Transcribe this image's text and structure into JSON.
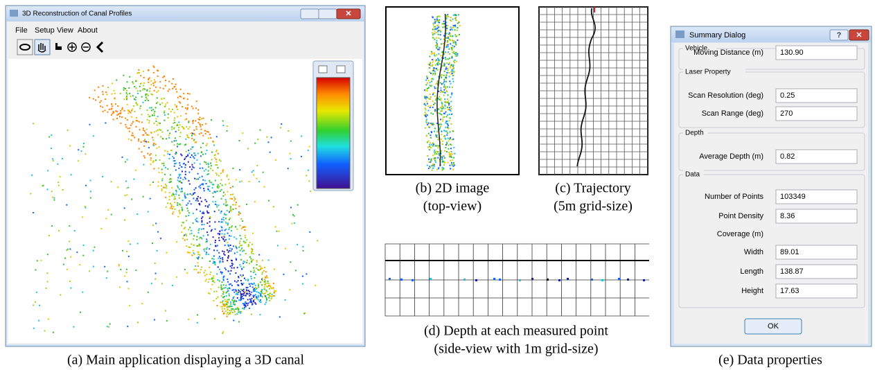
{
  "main_window": {
    "title": "3D Reconstruction of Canal Profiles",
    "menu": [
      "File",
      "Setup",
      "View",
      "About"
    ]
  },
  "captions": {
    "a": "(a) Main application displaying a 3D canal",
    "b": [
      "(b) 2D image",
      "(top-view)"
    ],
    "c": [
      "(c) Trajectory",
      "(5m grid-size)"
    ],
    "d": [
      "(d) Depth at each measured point",
      "(side-view with 1m grid-size)"
    ],
    "e": "(e) Data properties"
  },
  "summary_dialog": {
    "title": "Summary Dialog",
    "help": "?",
    "ok": "OK",
    "groups": [
      {
        "title": "Vehicle",
        "fields": [
          {
            "label": "Moving Distance (m)",
            "value": "130.90"
          }
        ]
      },
      {
        "title": "Laser Property",
        "fields": [
          {
            "label": "Scan Resolution (deg)",
            "value": "0.25"
          },
          {
            "label": "Scan Range (deg)",
            "value": "270"
          }
        ]
      },
      {
        "title": "Depth",
        "fields": [
          {
            "label": "Average Depth (m)",
            "value": "0.82"
          }
        ]
      },
      {
        "title": "Data",
        "fields": [
          {
            "label": "Number of Points",
            "value": "103349"
          },
          {
            "label": "Point Density",
            "value": "8.36"
          },
          {
            "label": "Coverage (m)"
          },
          {
            "label": "Width",
            "value": "89.01"
          },
          {
            "label": "Length",
            "value": "138.87"
          },
          {
            "label": "Height",
            "value": "17.63"
          }
        ]
      }
    ]
  }
}
